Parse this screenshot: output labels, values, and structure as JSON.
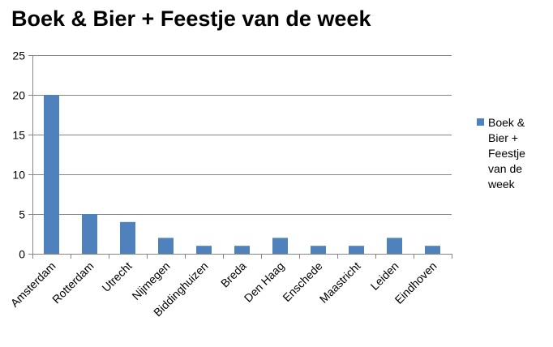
{
  "chart_data": {
    "type": "bar",
    "title": "Boek & Bier + Feestje van de week",
    "categories": [
      "Amsterdam",
      "Rotterdam",
      "Utrecht",
      "Nijmegen",
      "Biddinghuizen",
      "Breda",
      "Den Haag",
      "Enschede",
      "Maastricht",
      "Leiden",
      "Eindhoven"
    ],
    "series": [
      {
        "name": "Boek & Bier + Feestje van de week",
        "legend_lines": [
          "Boek &",
          "Bier +",
          "Feestje",
          "van de",
          "week"
        ],
        "color": "#4F81BD",
        "values": [
          20,
          5,
          4,
          2,
          1,
          1,
          2,
          1,
          1,
          2,
          1
        ]
      }
    ],
    "ylim": [
      0,
      25
    ],
    "yticks": [
      0,
      5,
      10,
      15,
      20,
      25
    ],
    "grid": true,
    "legend": "right",
    "xlabel": "",
    "ylabel": ""
  }
}
